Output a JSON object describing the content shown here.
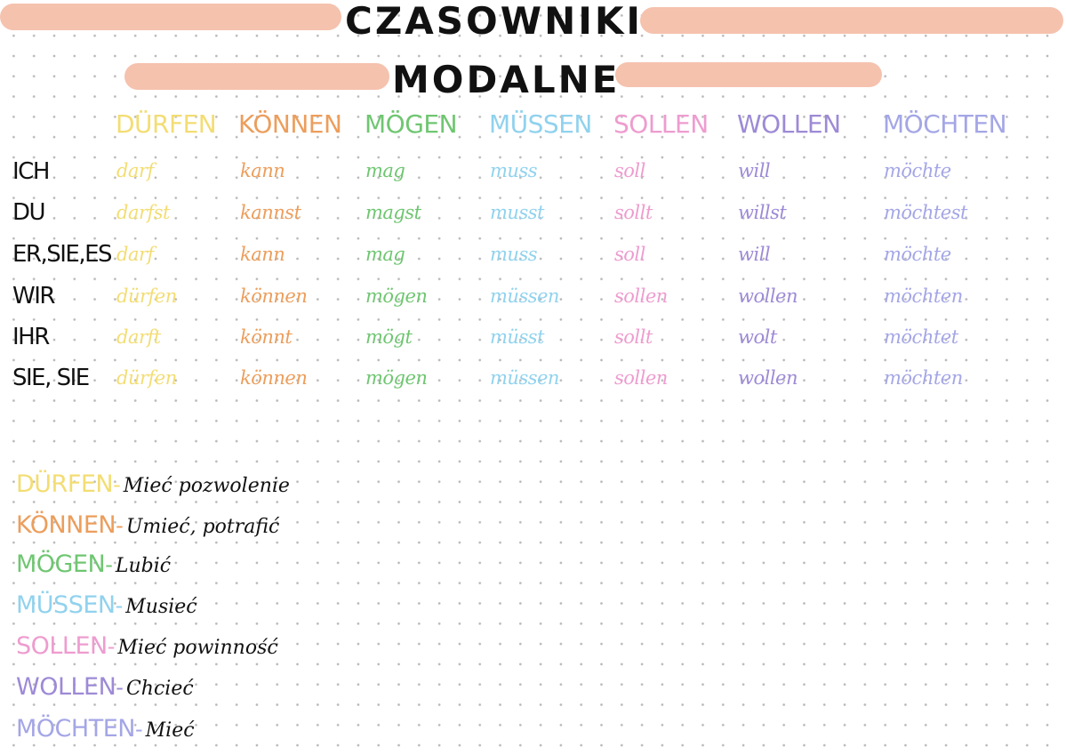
{
  "title": {
    "line1": "CZASOWNIKI",
    "line2": "MODALNE"
  },
  "pronouns": [
    "ICH",
    "DU",
    "ER,SIE,ES",
    "WIR",
    "IHR",
    "SIE, SIE"
  ],
  "verbs": [
    {
      "name": "DÜRFEN",
      "color": "#f3dd73",
      "forms": [
        "darf",
        "darfst",
        "darf",
        "dürfen",
        "darft",
        "dürfen"
      ]
    },
    {
      "name": "KÖNNEN",
      "color": "#ec9e5c",
      "forms": [
        "kann",
        "kannst",
        "kann",
        "können",
        "könnt",
        "können"
      ]
    },
    {
      "name": "MÖGEN",
      "color": "#6fc671",
      "forms": [
        "mag",
        "magst",
        "mag",
        "mögen",
        "mögt",
        "mögen"
      ]
    },
    {
      "name": "MÜSSEN",
      "color": "#90d2ee",
      "forms": [
        "muss",
        "musst",
        "muss",
        "müssen",
        "müsst",
        "müssen"
      ]
    },
    {
      "name": "SOLLEN",
      "color": "#ee9ccf",
      "forms": [
        "soll",
        "sollt",
        "soll",
        "sollen",
        "sollt",
        "sollen"
      ]
    },
    {
      "name": "WOLLEN",
      "color": "#9d8ad6",
      "forms": [
        "will",
        "willst",
        "will",
        "wollen",
        "wolt",
        "wollen"
      ]
    },
    {
      "name": "MÖCHTEN",
      "color": "#a4a6e6",
      "forms": [
        "möchte",
        "möchtest",
        "möchte",
        "möchten",
        "möchtet",
        "möchten"
      ]
    }
  ],
  "legend": [
    {
      "verb": "DÜRFEN",
      "dash": "-",
      "meaning": "Mieć pozwolenie"
    },
    {
      "verb": "KÖNNEN",
      "dash": "-",
      "meaning": "Umieć, potrafić"
    },
    {
      "verb": "MÖGEN",
      "dash": "-",
      "meaning": "Lubić"
    },
    {
      "verb": "MÜSSEN",
      "dash": "-",
      "meaning": "Musieć"
    },
    {
      "verb": "SOLLEN",
      "dash": "-",
      "meaning": "Mieć powinność"
    },
    {
      "verb": "WOLLEN",
      "dash": "-",
      "meaning": "Chcieć"
    },
    {
      "verb": "MÖCHTEN",
      "dash": "-",
      "meaning": "Mieć"
    }
  ],
  "colors": {
    "highlight": "#f5c2ae",
    "ink": "#111111"
  }
}
